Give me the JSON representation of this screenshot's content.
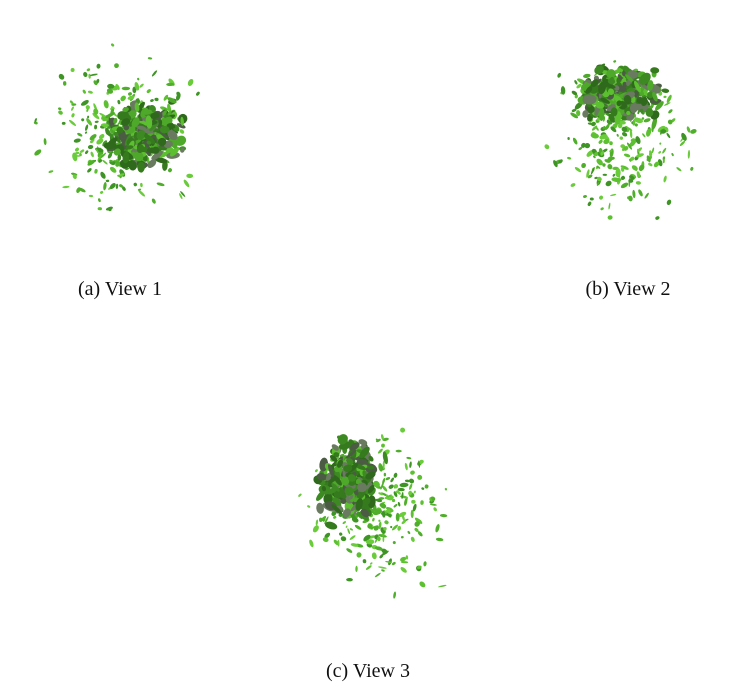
{
  "figures": [
    {
      "caption": "(a) View 1"
    },
    {
      "caption": "(b) View 2"
    },
    {
      "caption": "(c) View 3"
    }
  ]
}
